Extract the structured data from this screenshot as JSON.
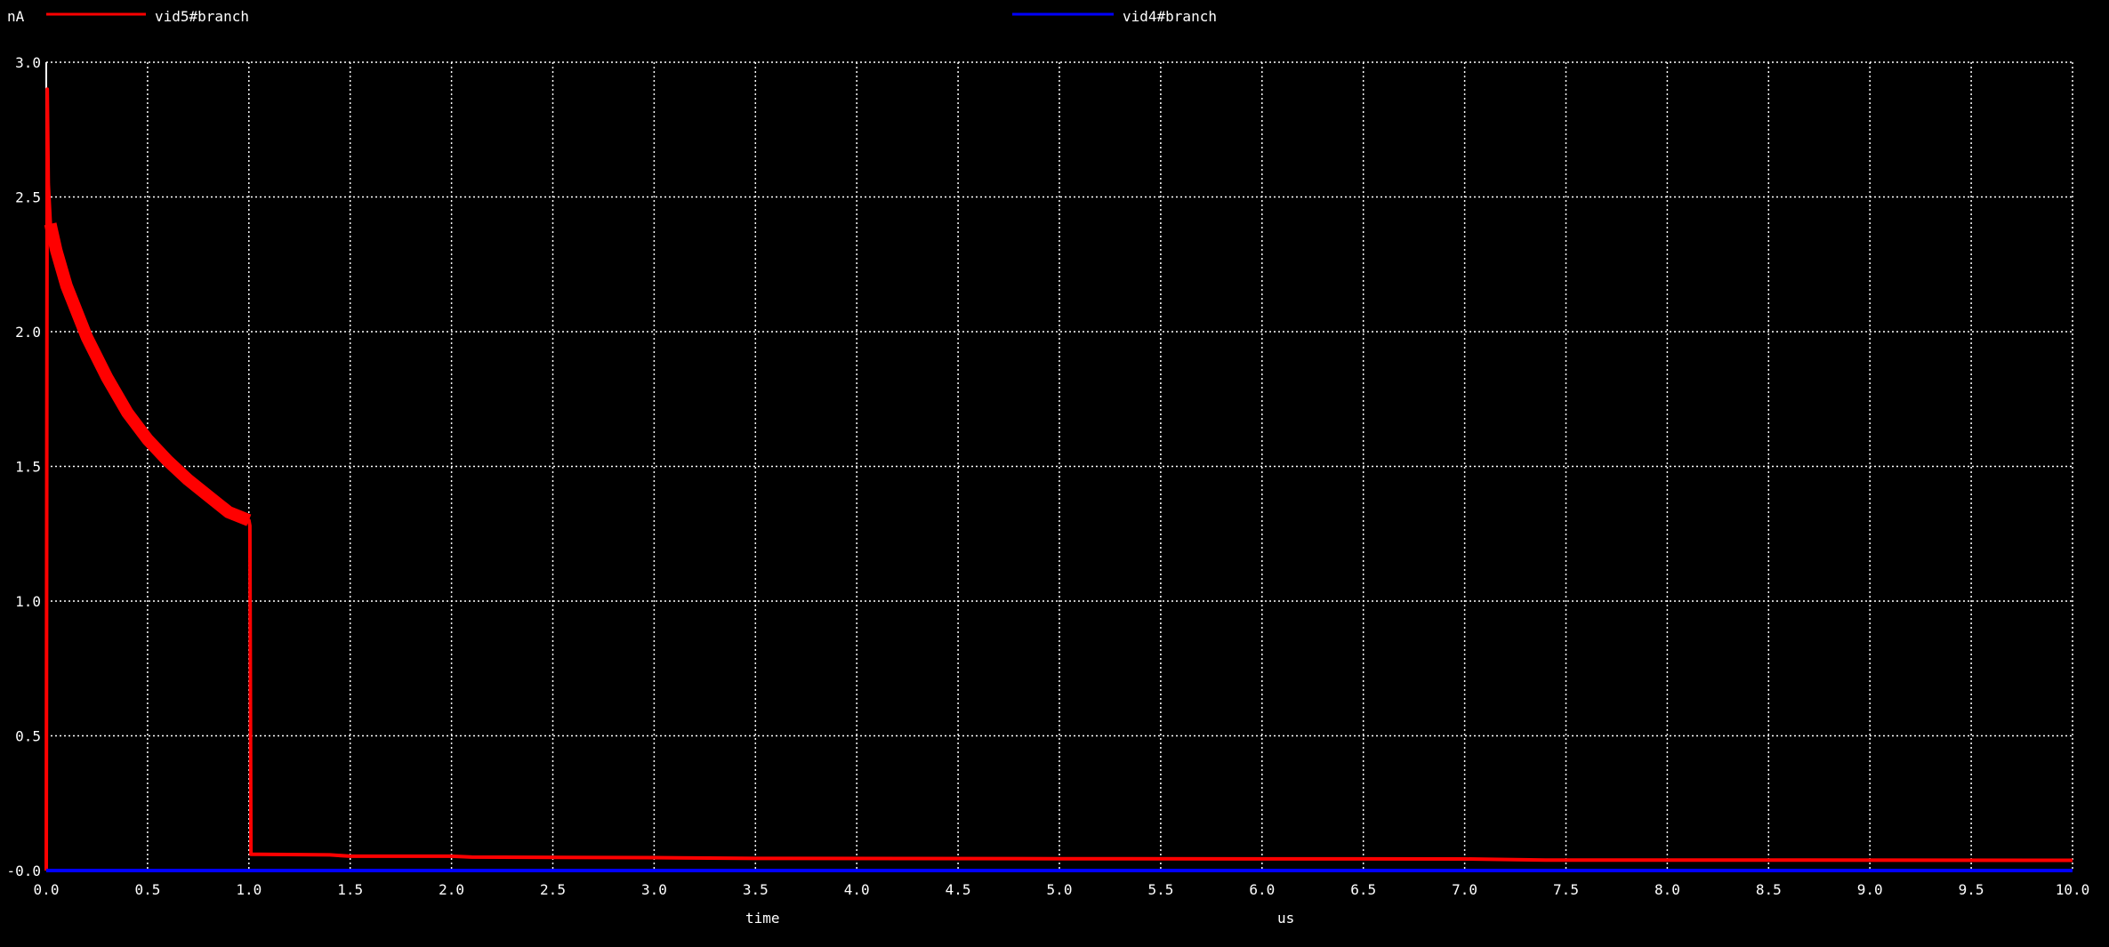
{
  "legend": {
    "unit": "nA",
    "series": [
      {
        "name": "vid5#branch",
        "color": "#ff0000"
      },
      {
        "name": "vid4#branch",
        "color": "#0000ff"
      }
    ]
  },
  "axis": {
    "xlabel": "time",
    "xunit": "us"
  },
  "chart_data": {
    "type": "line",
    "title": "",
    "xlabel": "time",
    "xunit": "us",
    "ylabel": "",
    "yunit": "nA",
    "xlim": [
      0,
      10
    ],
    "ylim": [
      0,
      3
    ],
    "xticks": [
      "0.0",
      "0.5",
      "1.0",
      "1.5",
      "2.0",
      "2.5",
      "3.0",
      "3.5",
      "4.0",
      "4.5",
      "5.0",
      "5.5",
      "6.0",
      "6.5",
      "7.0",
      "7.5",
      "8.0",
      "8.5",
      "9.0",
      "9.5",
      "10.0"
    ],
    "yticks": [
      "-0.0",
      "0.5",
      "1.0",
      "1.5",
      "2.0",
      "2.5",
      "3.0"
    ],
    "grid": true,
    "background": "#000000",
    "series": [
      {
        "name": "vid5#branch",
        "color": "#ff0000",
        "x": [
          0,
          0.005,
          0.01,
          0.02,
          0.05,
          0.1,
          0.2,
          0.3,
          0.4,
          0.5,
          0.6,
          0.7,
          0.8,
          0.9,
          1.0,
          1.005,
          1.01,
          1.05,
          1.4,
          1.5,
          2.0,
          2.1,
          3.0,
          3.5,
          5.0,
          7.0,
          7.4,
          8.0,
          10.0
        ],
        "y": [
          0,
          2.9,
          2.55,
          2.4,
          2.3,
          2.17,
          1.98,
          1.83,
          1.7,
          1.6,
          1.52,
          1.45,
          1.39,
          1.33,
          1.3,
          1.28,
          0.06,
          0.06,
          0.058,
          0.053,
          0.053,
          0.05,
          0.048,
          0.045,
          0.044,
          0.043,
          0.039,
          0.039,
          0.038
        ]
      },
      {
        "name": "vid4#branch",
        "color": "#0000ff",
        "x": [
          0,
          10
        ],
        "y": [
          0,
          0
        ]
      }
    ]
  }
}
